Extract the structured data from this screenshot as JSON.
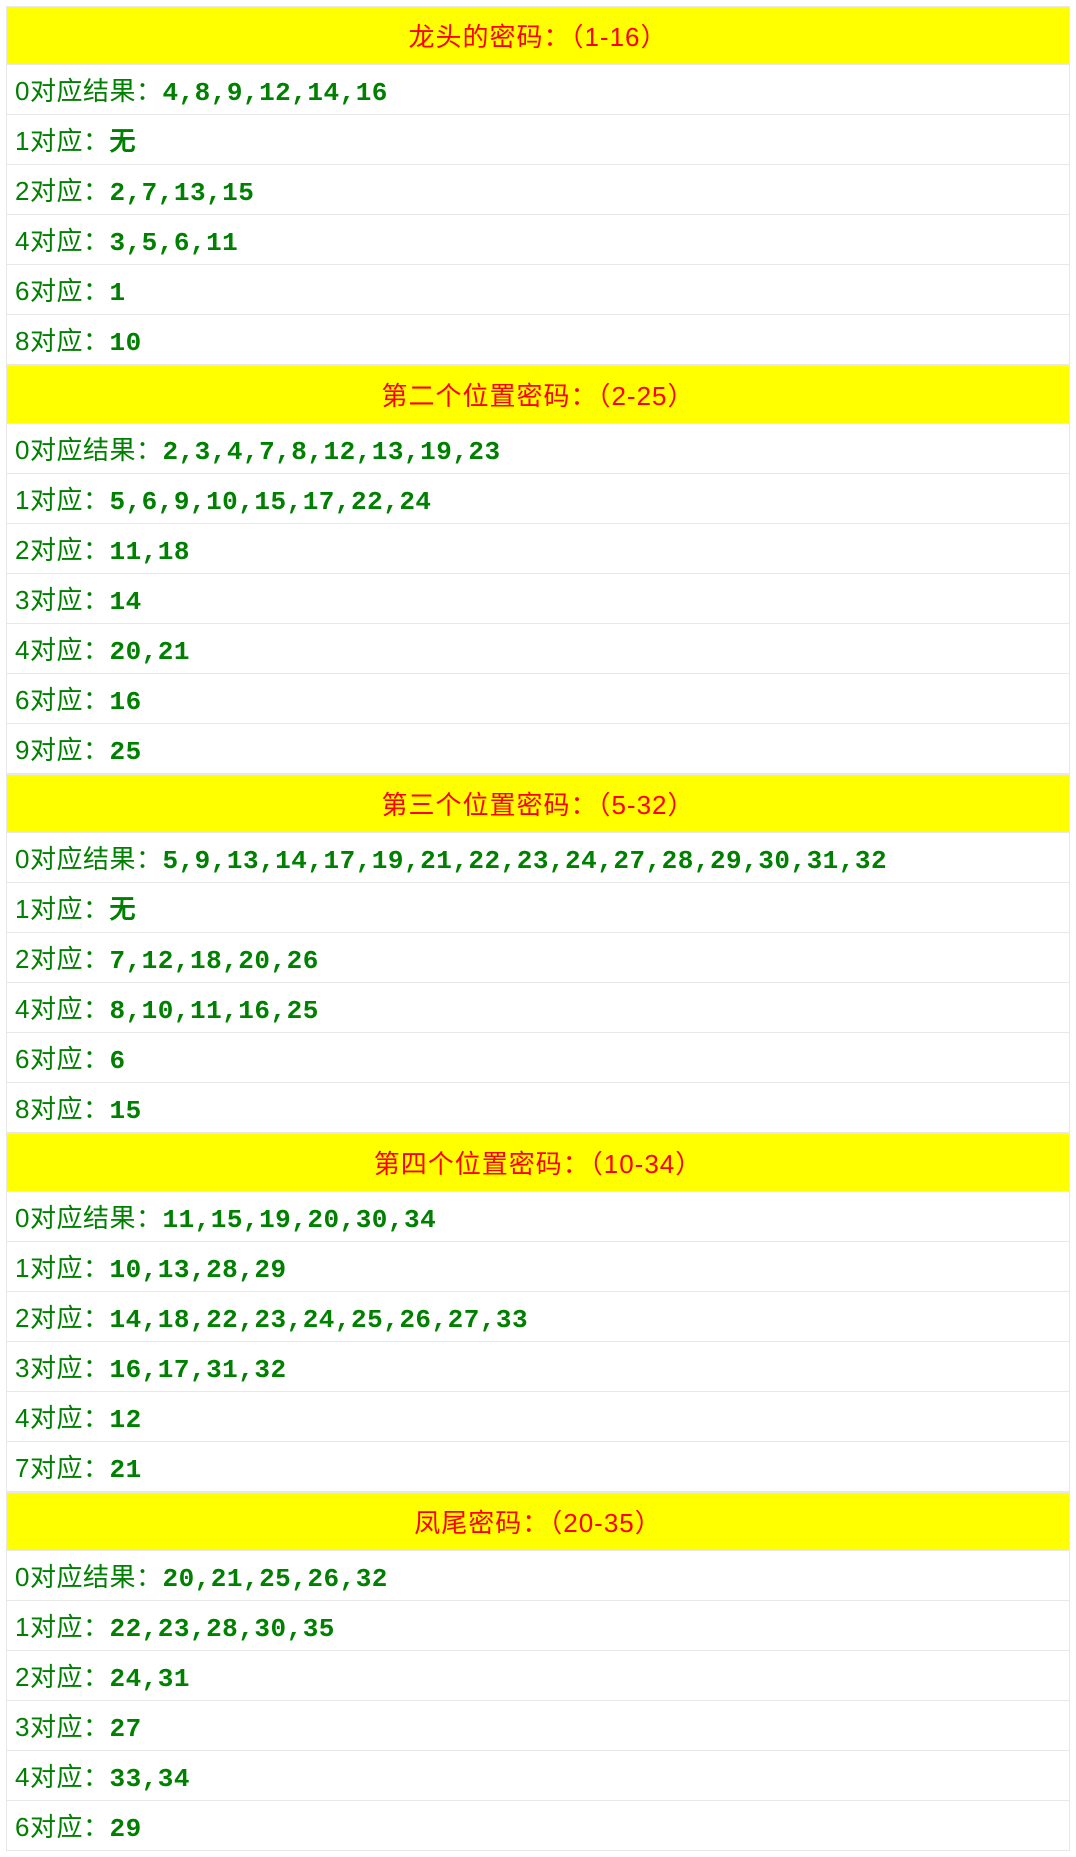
{
  "colors": {
    "header_bg": "#ffff00",
    "header_text": "#ff0000",
    "row_text": "#008000",
    "row_bg": "#ffffff",
    "border": "#e8e8e8"
  },
  "typography": {
    "header_fontsize": 26,
    "row_fontsize": 26,
    "header_font": "Microsoft YaHei",
    "value_font": "Courier New"
  },
  "sections": [
    {
      "title": "龙头的密码：（1-16）",
      "rows": [
        {
          "label": "0对应结果：",
          "value": "4,8,9,12,14,16"
        },
        {
          "label": "1对应：",
          "value": "无"
        },
        {
          "label": "2对应：",
          "value": "2,7,13,15"
        },
        {
          "label": "4对应：",
          "value": "3,5,6,11"
        },
        {
          "label": "6对应：",
          "value": "1"
        },
        {
          "label": "8对应：",
          "value": "10"
        }
      ]
    },
    {
      "title": "第二个位置密码：（2-25）",
      "rows": [
        {
          "label": "0对应结果：",
          "value": "2,3,4,7,8,12,13,19,23"
        },
        {
          "label": "1对应：",
          "value": "5,6,9,10,15,17,22,24"
        },
        {
          "label": "2对应：",
          "value": "11,18"
        },
        {
          "label": "3对应：",
          "value": "14"
        },
        {
          "label": "4对应：",
          "value": "20,21"
        },
        {
          "label": "6对应：",
          "value": "16"
        },
        {
          "label": "9对应：",
          "value": "25"
        }
      ]
    },
    {
      "title": "第三个位置密码：（5-32）",
      "rows": [
        {
          "label": "0对应结果：",
          "value": "5,9,13,14,17,19,21,22,23,24,27,28,29,30,31,32"
        },
        {
          "label": "1对应：",
          "value": "无"
        },
        {
          "label": "2对应：",
          "value": "7,12,18,20,26"
        },
        {
          "label": "4对应：",
          "value": "8,10,11,16,25"
        },
        {
          "label": "6对应：",
          "value": "6"
        },
        {
          "label": "8对应：",
          "value": "15"
        }
      ]
    },
    {
      "title": "第四个位置密码：（10-34）",
      "rows": [
        {
          "label": "0对应结果：",
          "value": "11,15,19,20,30,34"
        },
        {
          "label": "1对应：",
          "value": "10,13,28,29"
        },
        {
          "label": "2对应：",
          "value": "14,18,22,23,24,25,26,27,33"
        },
        {
          "label": "3对应：",
          "value": "16,17,31,32"
        },
        {
          "label": "4对应：",
          "value": "12"
        },
        {
          "label": "7对应：",
          "value": "21"
        }
      ]
    },
    {
      "title": "凤尾密码：（20-35）",
      "rows": [
        {
          "label": "0对应结果：",
          "value": "20,21,25,26,32"
        },
        {
          "label": "1对应：",
          "value": "22,23,28,30,35"
        },
        {
          "label": "2对应：",
          "value": "24,31"
        },
        {
          "label": "3对应：",
          "value": "27"
        },
        {
          "label": "4对应：",
          "value": "33,34"
        },
        {
          "label": "6对应：",
          "value": "29"
        }
      ]
    }
  ]
}
